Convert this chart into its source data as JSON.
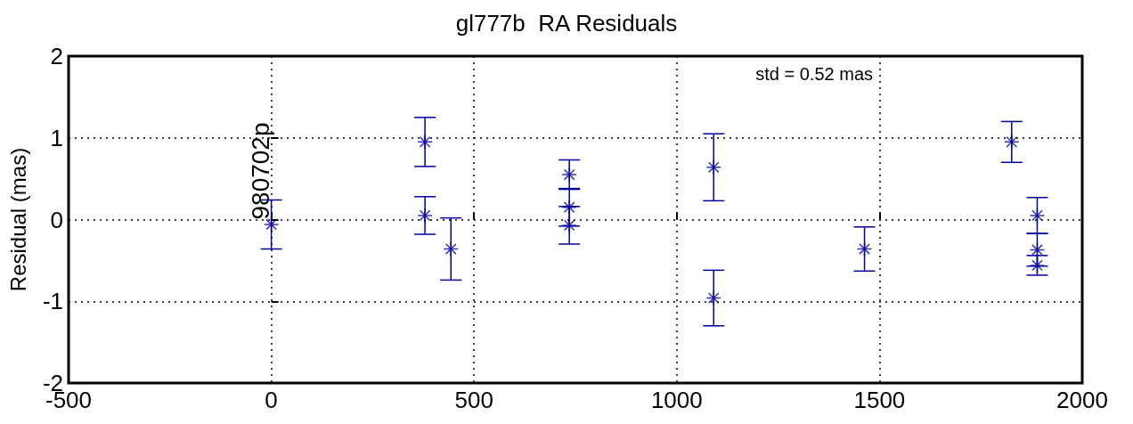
{
  "chart_data": {
    "type": "scatter",
    "title": "gl777b  RA Residuals",
    "ylabel": "Residual (mas)",
    "x": [
      0,
      379,
      379,
      443,
      735,
      735,
      735,
      1091,
      1091,
      1463,
      1826,
      1889,
      1889,
      1889
    ],
    "series": [
      {
        "color": "#0000a0",
        "values": [
          -0.06,
          0.95,
          0.05,
          -0.36,
          0.55,
          0.15,
          -0.07,
          0.64,
          -0.96,
          -0.36,
          0.95,
          0.05,
          -0.37,
          -0.56
        ],
        "errors": [
          0.3,
          0.3,
          0.23,
          0.38,
          0.18,
          0.23,
          0.23,
          0.41,
          0.34,
          0.27,
          0.25,
          0.22,
          0.2,
          0.12
        ]
      }
    ],
    "xlim": [
      -500,
      2000
    ],
    "xticks": [
      -500,
      0,
      500,
      1000,
      1500,
      2000
    ],
    "ylim": [
      -2,
      2
    ],
    "yticks": [
      -2,
      -1,
      0,
      1,
      2
    ],
    "grid": true,
    "marker": "cross",
    "annotations": [
      {
        "text": "980702p",
        "x": 0,
        "y": 0
      },
      "std = 0.52 mas"
    ]
  }
}
